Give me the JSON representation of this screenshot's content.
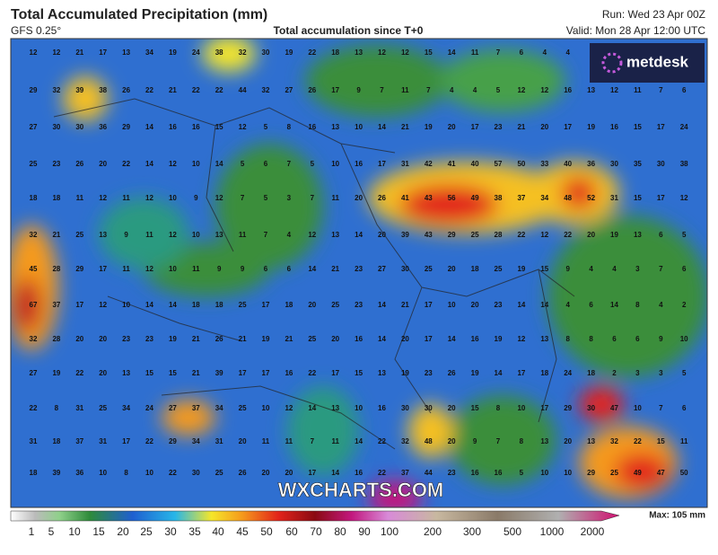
{
  "header": {
    "title": "Total Accumulated Precipitation (mm)",
    "model": "GFS 0.25°",
    "subtitle": "Total accumulation since T+0",
    "run": "Run: Wed 23 Apr 00Z",
    "valid": "Valid: Mon 28 Apr 12:00 UTC"
  },
  "logo": "metdesk",
  "watermark": "WXCHARTS.COM",
  "map": {
    "rows": [
      [
        12,
        12,
        21,
        17,
        13,
        34,
        19,
        24,
        38,
        32,
        30,
        19,
        22,
        18,
        13,
        12,
        12,
        15,
        14,
        11,
        7,
        6,
        4,
        4
      ],
      [
        29,
        32,
        39,
        38,
        26,
        22,
        21,
        22,
        22,
        44,
        32,
        27,
        26,
        17,
        9,
        7,
        11,
        7,
        4,
        4,
        5,
        12,
        12,
        16,
        13,
        12,
        11,
        7,
        6
      ],
      [
        27,
        30,
        30,
        36,
        29,
        14,
        16,
        16,
        15,
        12,
        5,
        8,
        16,
        13,
        10,
        14,
        21,
        19,
        20,
        17,
        23,
        21,
        20,
        17,
        19,
        16,
        15,
        17,
        24
      ],
      [
        25,
        23,
        26,
        20,
        22,
        14,
        12,
        10,
        14,
        5,
        6,
        7,
        5,
        10,
        16,
        17,
        31,
        42,
        41,
        40,
        57,
        50,
        33,
        40,
        36,
        30,
        35,
        30,
        38
      ],
      [
        18,
        18,
        11,
        12,
        11,
        12,
        10,
        9,
        12,
        7,
        5,
        3,
        7,
        11,
        20,
        26,
        41,
        43,
        56,
        49,
        38,
        37,
        34,
        48,
        52,
        31,
        15,
        17,
        12
      ],
      [
        32,
        21,
        25,
        13,
        9,
        11,
        12,
        10,
        13,
        11,
        7,
        4,
        12,
        13,
        14,
        20,
        39,
        43,
        29,
        25,
        28,
        22,
        12,
        22,
        20,
        19,
        13,
        6,
        5
      ],
      [
        45,
        28,
        29,
        17,
        11,
        12,
        10,
        11,
        9,
        9,
        6,
        6,
        14,
        21,
        23,
        27,
        30,
        25,
        20,
        18,
        25,
        19,
        15,
        9,
        4,
        4,
        3,
        7,
        6
      ],
      [
        67,
        37,
        17,
        12,
        10,
        14,
        14,
        18,
        18,
        25,
        17,
        18,
        20,
        25,
        23,
        14,
        21,
        17,
        10,
        20,
        23,
        14,
        14,
        4,
        6,
        14,
        8,
        4,
        2
      ],
      [
        32,
        28,
        20,
        20,
        23,
        23,
        19,
        21,
        26,
        21,
        19,
        21,
        25,
        20,
        16,
        14,
        20,
        17,
        14,
        16,
        19,
        12,
        13,
        8,
        8,
        6,
        6,
        9,
        10
      ],
      [
        27,
        19,
        22,
        20,
        13,
        15,
        15,
        21,
        39,
        17,
        17,
        16,
        22,
        17,
        15,
        13,
        19,
        23,
        26,
        19,
        14,
        17,
        18,
        24,
        18,
        2,
        3,
        3,
        5
      ],
      [
        22,
        8,
        31,
        25,
        34,
        24,
        27,
        37,
        34,
        25,
        10,
        12,
        14,
        13,
        10,
        16,
        30,
        30,
        20,
        15,
        8,
        10,
        17,
        29,
        30,
        47,
        10,
        7,
        6
      ],
      [
        31,
        18,
        37,
        31,
        17,
        22,
        29,
        34,
        31,
        20,
        11,
        11,
        7,
        11,
        14,
        22,
        32,
        48,
        20,
        9,
        7,
        8,
        13,
        20,
        13,
        32,
        22,
        15,
        11
      ],
      [
        18,
        39,
        36,
        10,
        8,
        10,
        22,
        30,
        25,
        26,
        20,
        20,
        17,
        14,
        16,
        22,
        37,
        44,
        23,
        16,
        16,
        5,
        10,
        10,
        29,
        25,
        49,
        47,
        50
      ]
    ]
  },
  "legend": {
    "labels": [
      1,
      5,
      10,
      15,
      20,
      25,
      30,
      35,
      40,
      45,
      50,
      60,
      70,
      80,
      90,
      100,
      200,
      300,
      500,
      1000,
      2000
    ],
    "max": "Max: 105 mm"
  }
}
